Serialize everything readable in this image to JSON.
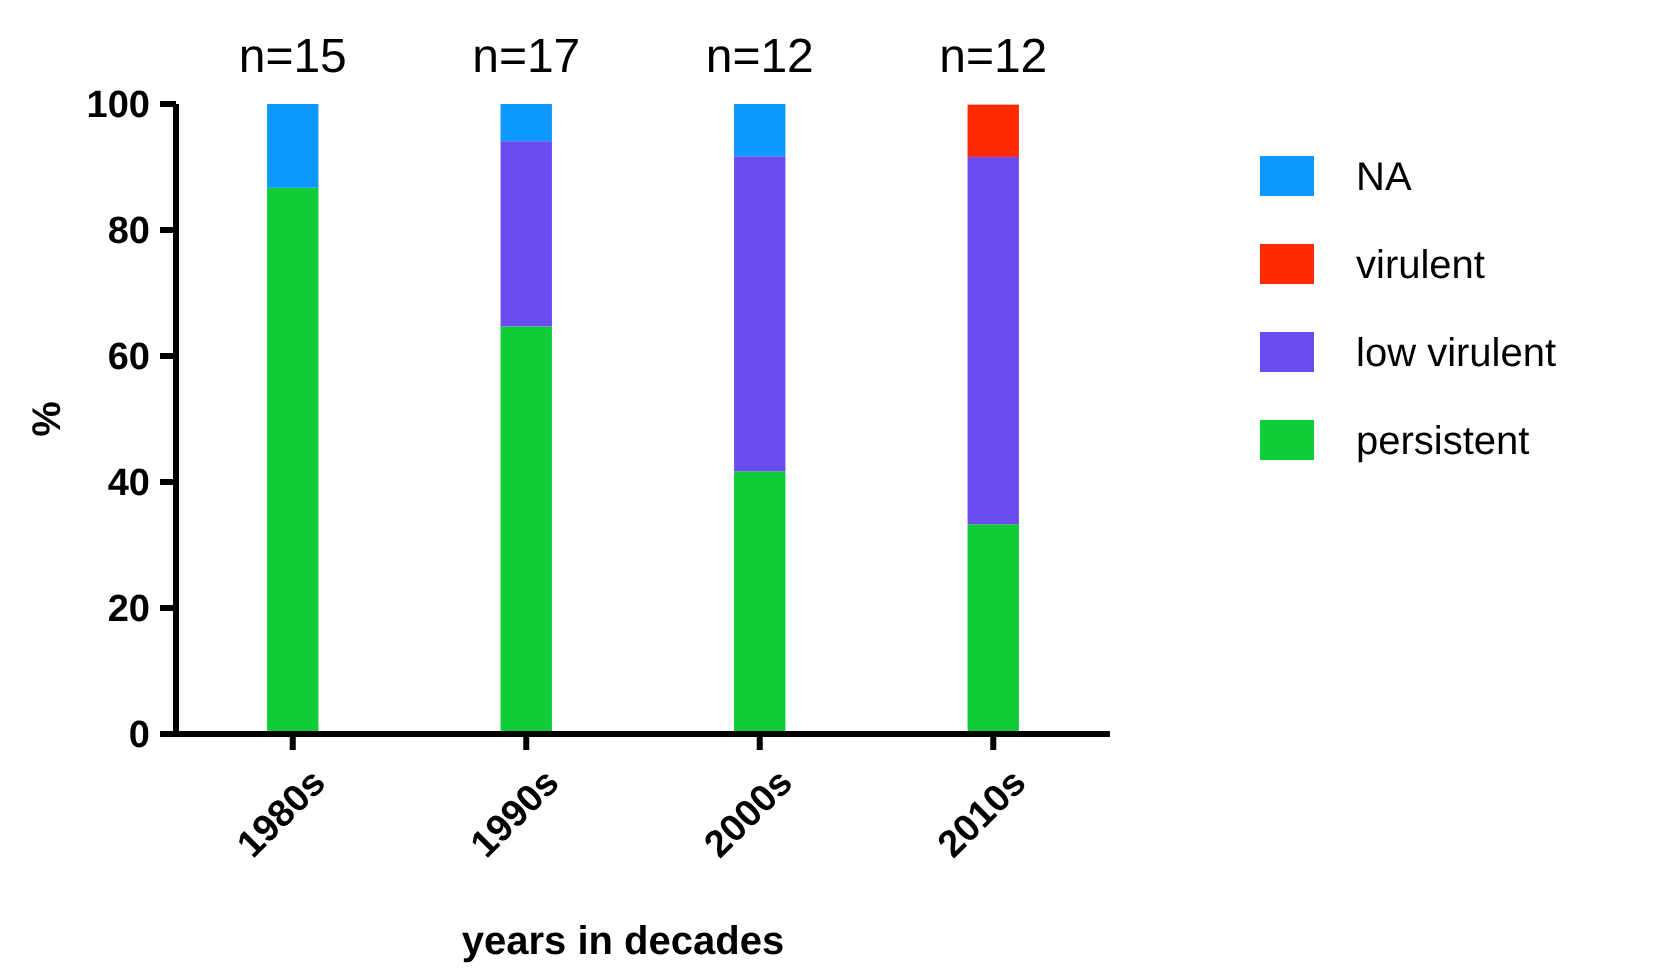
{
  "chart_data": {
    "type": "bar",
    "stacked": true,
    "xlabel": "years in decades",
    "ylabel": "%",
    "categories": [
      "1980s",
      "1990s",
      "2000s",
      "2010s"
    ],
    "series": [
      {
        "name": "persistent",
        "color": "#10cc38",
        "values": [
          86.7,
          64.7,
          41.7,
          33.3
        ]
      },
      {
        "name": "low virulent",
        "color": "#6a4cee",
        "values": [
          0,
          29.4,
          50,
          58.3
        ]
      },
      {
        "name": "virulent",
        "color": "#ff2a00",
        "values": [
          0,
          0,
          0,
          8.3
        ]
      },
      {
        "name": "NA",
        "color": "#0d99fc",
        "values": [
          13.3,
          5.9,
          8.3,
          0
        ]
      }
    ],
    "ylim": [
      0,
      100
    ],
    "yticks": [
      0,
      20,
      40,
      60,
      80,
      100
    ],
    "legend": "right",
    "grid": false,
    "annotations": [
      {
        "text": "n=15",
        "x": "1980s",
        "y": 100
      },
      {
        "text": "n=17",
        "x": "1990s",
        "y": 100
      },
      {
        "text": "n=12",
        "x": "2000s",
        "y": 100
      },
      {
        "text": "n=12",
        "x": "2010s",
        "y": 100
      }
    ]
  }
}
